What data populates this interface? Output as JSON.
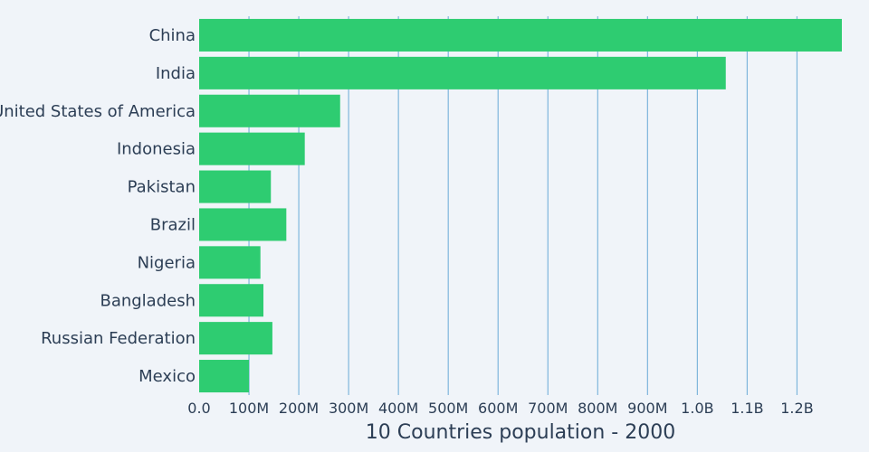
{
  "chart_data": {
    "type": "bar",
    "orientation": "horizontal",
    "categories": [
      "China",
      "India",
      "United States of America",
      "Indonesia",
      "Pakistan",
      "Brazil",
      "Nigeria",
      "Bangladesh",
      "Russian Federation",
      "Mexico"
    ],
    "values": [
      1290000000,
      1057000000,
      283000000,
      212000000,
      144000000,
      175000000,
      123000000,
      129000000,
      147000000,
      100000000
    ],
    "xlabel": "10 Countries population - 2000",
    "ylabel": "",
    "xlim": [
      0,
      1290000000
    ],
    "x_ticks": [
      {
        "value": 0,
        "label": "0.0"
      },
      {
        "value": 100000000,
        "label": "100M"
      },
      {
        "value": 200000000,
        "label": "200M"
      },
      {
        "value": 300000000,
        "label": "300M"
      },
      {
        "value": 400000000,
        "label": "400M"
      },
      {
        "value": 500000000,
        "label": "500M"
      },
      {
        "value": 600000000,
        "label": "600M"
      },
      {
        "value": 700000000,
        "label": "700M"
      },
      {
        "value": 800000000,
        "label": "800M"
      },
      {
        "value": 900000000,
        "label": "900M"
      },
      {
        "value": 1000000000,
        "label": "1.0B"
      },
      {
        "value": 1100000000,
        "label": "1.1B"
      },
      {
        "value": 1200000000,
        "label": "1.2B"
      }
    ],
    "grid": {
      "x": true,
      "y": false
    },
    "colors": {
      "bar": "#2ecc71",
      "grid": "#7fb6dc",
      "text": "#2c3e55",
      "background": "#f0f4f9"
    }
  }
}
